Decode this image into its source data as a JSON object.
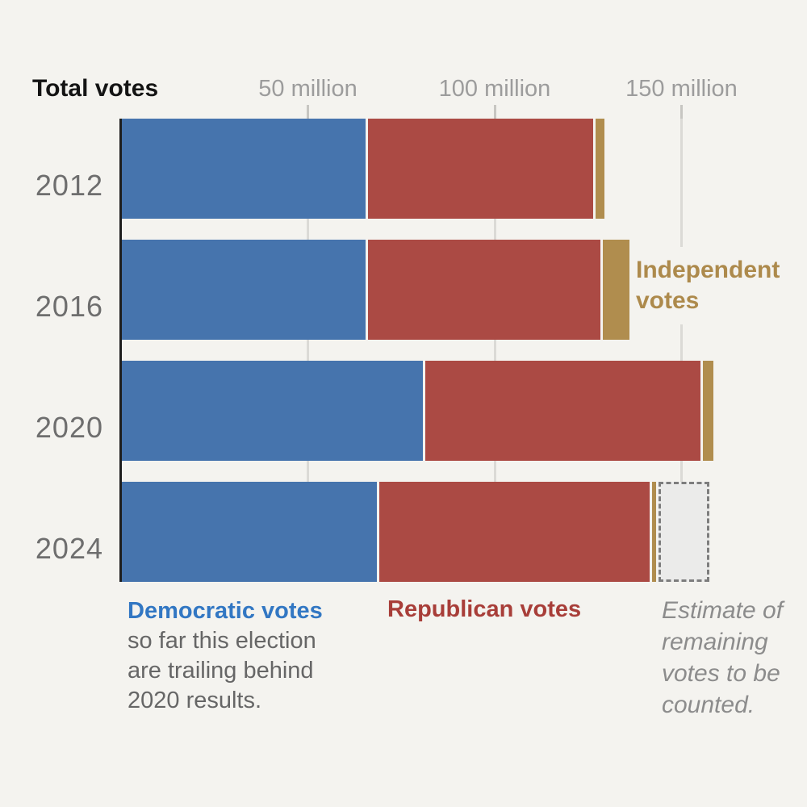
{
  "title": "Total votes",
  "axis": {
    "tick_labels": [
      "50 million",
      "100 million",
      "150 million"
    ],
    "tick_values_millions": [
      50,
      100,
      150
    ]
  },
  "legend": {
    "independent": {
      "label": "Independent votes",
      "lines": [
        "Independent",
        "votes"
      ]
    }
  },
  "annotations": {
    "democratic_note": {
      "lead": "Democratic votes",
      "lines": [
        "so far this election",
        "are trailing behind",
        "2020 results."
      ]
    },
    "republican_label": "Republican votes",
    "estimate_note": {
      "full_text": "Estimate of remaining votes to be counted.",
      "lines": [
        "Estimate of",
        "remaining",
        "votes to be",
        "counted."
      ]
    }
  },
  "colors": {
    "background": "#f4f3ef",
    "democratic_bar": "#4674ad",
    "republican_bar": "#ab4a44",
    "independent_bar": "#b08d4e",
    "democratic_text": "#3277c3",
    "republican_text": "#a83e39",
    "independent_text": "#ad8a4c",
    "estimate_box_fill": "#ebebea",
    "estimate_box_border": "#7d7d7d",
    "axis_line": "#1e1e1e",
    "gridline": "#dbdad6",
    "tick_mark": "#c7c6c2",
    "year_text": "#6e6e6e",
    "tick_label_text": "#9c9c9c",
    "note_text": "#666666",
    "estimate_text": "#8c8c8c",
    "title_text": "#141414"
  },
  "chart_data": {
    "type": "bar",
    "orientation": "horizontal",
    "title": "Total votes",
    "unit": "millions of votes",
    "categories": [
      "2012",
      "2016",
      "2020",
      "2024"
    ],
    "series": [
      {
        "name": "Democratic votes",
        "values": [
          65.9,
          65.8,
          81.3,
          68.9
        ]
      },
      {
        "name": "Republican votes",
        "values": [
          60.9,
          63.0,
          74.2,
          73.0
        ]
      },
      {
        "name": "Independent votes",
        "values": [
          2.4,
          7.0,
          2.9,
          1.8
        ]
      }
    ],
    "remaining_estimate": {
      "category": "2024",
      "value": 13.5,
      "label": "Estimate of remaining votes to be counted."
    },
    "x_axis": {
      "ticks_millions": [
        50,
        100,
        150
      ],
      "range_millions": [
        0,
        179
      ]
    },
    "gridlines": true,
    "legend_position": "annotations below and beside bars"
  }
}
